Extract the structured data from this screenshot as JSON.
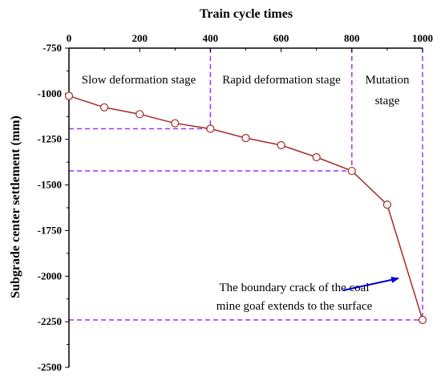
{
  "chart_data": {
    "type": "line",
    "xlabel": "Train cycle times",
    "ylabel": "Subgrade center settlement (mm)",
    "xlim": [
      0,
      1000
    ],
    "ylim": [
      -2500,
      -750
    ],
    "x_ticks": [
      0,
      200,
      400,
      600,
      800,
      1000
    ],
    "y_ticks": [
      -750,
      -1000,
      -1250,
      -1500,
      -1750,
      -2000,
      -2250,
      -2500
    ],
    "x_axis_position": "top",
    "y_axis_inverted": true,
    "grid": false,
    "line_color": "#a52a2a",
    "marker_color": "#a52a2a",
    "guide_color": "#9933ff",
    "series": [
      {
        "x": [
          0,
          100,
          200,
          300,
          400,
          500,
          600,
          700,
          800,
          900,
          1000
        ],
        "values": [
          -1012,
          -1075,
          -1112,
          -1162,
          -1192,
          -1243,
          -1282,
          -1348,
          -1423,
          -1608,
          -2240
        ]
      }
    ],
    "stage_boundaries_x": [
      400,
      800,
      1000
    ],
    "stage_boundaries_y": [
      -1192,
      -1423,
      -2240
    ],
    "stage_labels": [
      "Slow deformation stage",
      "Rapid deformation stage",
      "Mutation",
      "stage"
    ],
    "annotation": [
      "The boundary crack of the coal",
      "mine goaf extends to the surface"
    ],
    "annotation_arrow_color": "#0000cc"
  }
}
